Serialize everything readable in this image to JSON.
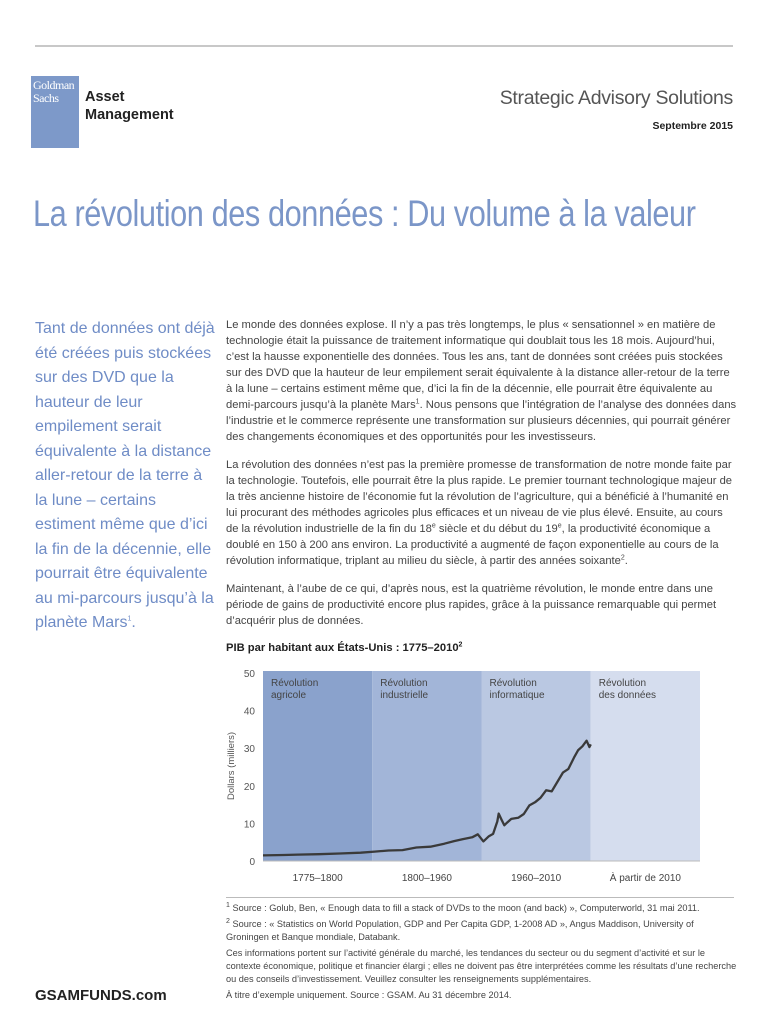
{
  "header": {
    "logo_text": [
      "Goldman",
      "Sachs"
    ],
    "brand_line1": "Asset",
    "brand_line2": "Management",
    "series": "Strategic Advisory Solutions",
    "date": "Septembre 2015"
  },
  "title": "La révolution des données : Du volume à la valeur",
  "pull_quote": {
    "text": "Tant de données ont déjà été créées puis stockées sur des DVD que la hauteur de leur empilement serait équivalente à la distance aller-retour de la terre à la lune – certains estiment même que d’ici la fin de la décennie, elle pourrait être équivalente au mi-parcours jusqu’à la planète Mars",
    "ref": "1",
    "end": "."
  },
  "body": {
    "p1a": "Le monde des données explose. Il n’y a pas très longtemps, le plus « sensationnel » en matière de technologie était la puissance de traitement informatique qui doublait tous les 18 mois. Aujourd’hui, c’est la hausse exponentielle des données. Tous les ans, tant de données sont créées puis stockées sur des DVD que la hauteur de leur empilement serait équivalente à la distance aller-retour de la terre à la lune – certains estiment même que, d’ici la fin de la décennie, elle pourrait être équivalente au demi-parcours jusqu’à la planète Mars",
    "p1ref": "1",
    "p1b": ". Nous pensons que l’intégration de l’analyse des données dans l’industrie et le commerce représente une transformation sur plusieurs décennies, qui pourrait générer des changements économiques et des opportunités pour les investisseurs.",
    "p2a": "La révolution des données n’est pas la première promesse de transformation de notre monde faite par la technologie. Toutefois, elle pourrait être la plus rapide. Le premier tournant technologique majeur de la très ancienne histoire de l’économie fut la révolution de l’agriculture, qui a bénéficié à l’humanité en lui procurant des méthodes agricoles plus efficaces et un niveau de vie plus élevé. Ensuite, au cours de la révolution industrielle de la fin du 18",
    "sup_e": "e",
    "p2b": " siècle et du début du 19",
    "p2c": ", la productivité économique a doublé en 150 à 200 ans environ. La productivité a augmenté de façon exponentielle au cours de la révolution informatique, triplant au milieu du siècle, à partir des années soixante",
    "p2ref": "2",
    "p2d": ".",
    "p3": "Maintenant, à l’aube de ce qui, d’après nous, est la quatrième révolution, le monde entre dans une période de gains de productivité encore plus rapides, grâce à la puissance remarquable qui permet d’acquérir plus de données."
  },
  "chart_data": {
    "type": "line",
    "title": "PIB par habitant aux États-Unis : 1775–2010",
    "title_ref": "2",
    "ylabel": "Dollars (milliers)",
    "ylim": [
      0,
      50
    ],
    "yticks": [
      "0",
      "10",
      "20",
      "30",
      "40",
      "50"
    ],
    "bands": [
      {
        "label": "Révolution agricole",
        "lines": [
          "Révolution",
          "agricole"
        ],
        "xlabel": "1775–1800",
        "color": "#8aa2cc"
      },
      {
        "label": "Révolution industrielle",
        "lines": [
          "Révolution",
          "industrielle"
        ],
        "xlabel": "1800–1960",
        "color": "#a2b5d8"
      },
      {
        "label": "Révolution informatique",
        "lines": [
          "Révolution",
          "informatique"
        ],
        "xlabel": "1960–2010",
        "color": "#bac8e2"
      },
      {
        "label": "Révolution des données",
        "lines": [
          "Révolution",
          "des données"
        ],
        "xlabel": "À partir de 2010",
        "color": "#d5ddee"
      }
    ],
    "line_color": "#3a3a3a",
    "x": [
      1775,
      1790,
      1800,
      1815,
      1830,
      1845,
      1855,
      1865,
      1875,
      1885,
      1895,
      1905,
      1912,
      1918,
      1925,
      1929,
      1933,
      1937,
      1940,
      1943,
      1944,
      1946,
      1948,
      1950,
      1953,
      1958,
      1962,
      1966,
      1970,
      1974,
      1978,
      1982,
      1986,
      1990,
      1994,
      1998,
      2001,
      2004,
      2007,
      2009,
      2010
    ],
    "y": [
      1.5,
      1.6,
      1.7,
      1.8,
      2.0,
      2.2,
      2.5,
      2.8,
      2.9,
      3.6,
      3.8,
      4.6,
      5.3,
      5.8,
      6.3,
      7.1,
      5.2,
      6.6,
      7.2,
      10.5,
      12.6,
      11,
      9.5,
      10.2,
      11.2,
      11.5,
      12.5,
      14.8,
      15.6,
      16.8,
      18.8,
      18.5,
      21,
      23.5,
      24.5,
      27.5,
      29.5,
      30.5,
      32,
      30.3,
      31
    ]
  },
  "footnotes": [
    {
      "ref": "1",
      "text": "Source : Golub, Ben, « Enough data to fill a stack of DVDs to the moon (and back) », Computerworld, 31 mai 2011."
    },
    {
      "ref": "2",
      "text": "Source : « Statistics on World Population, GDP and Per Capita GDP, 1-2008 AD », Angus Maddison, University of Groningen et Banque mondiale, Databank."
    }
  ],
  "disclaimer": "Ces informations portent sur l’activité générale du marché, les tendances du secteur ou du segment d’activité et sur le contexte économique, politique et financier élargi ; elles ne doivent pas être interprétées comme les résultats d’une recherche ou des conseils d’investissement. Veuillez consulter les renseignements supplémentaires.",
  "source_note": "À titre d’exemple uniquement. Source : GSAM. Au 31 décembre 2014.",
  "footer": {
    "site": "GSAMFUNDS.com"
  }
}
